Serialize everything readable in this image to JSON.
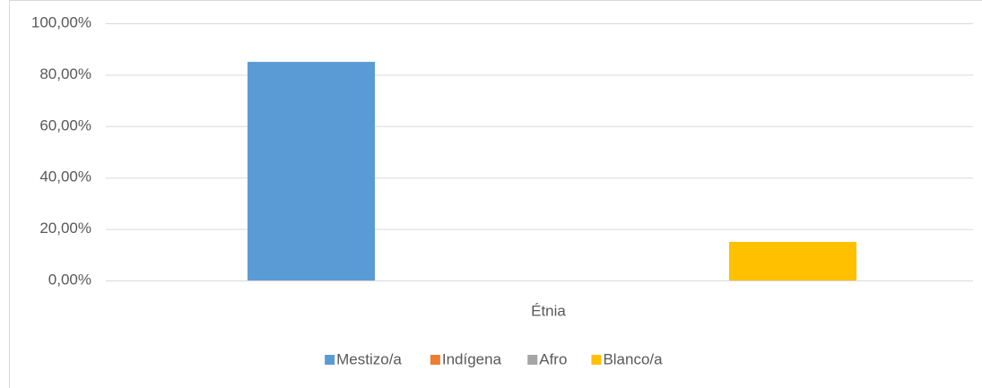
{
  "chart_data": {
    "type": "bar",
    "categories": [
      "Étnia"
    ],
    "series": [
      {
        "name": "Mestizo/a",
        "color": "#5b9bd5",
        "values": [
          85
        ]
      },
      {
        "name": "Indígena",
        "color": "#ed7d31",
        "values": [
          0
        ]
      },
      {
        "name": "Afro",
        "color": "#a5a5a5",
        "values": [
          0
        ]
      },
      {
        "name": "Blanco/a",
        "color": "#ffc000",
        "values": [
          15
        ]
      }
    ],
    "ylim": [
      0,
      100
    ],
    "yticks": [
      {
        "value": 0,
        "label": "0,00%"
      },
      {
        "value": 20,
        "label": "20,00%"
      },
      {
        "value": 40,
        "label": "40,00%"
      },
      {
        "value": 60,
        "label": "60,00%"
      },
      {
        "value": 80,
        "label": "80,00%"
      },
      {
        "value": 100,
        "label": "100,00%"
      }
    ],
    "grid": true,
    "legend": "bottom"
  }
}
